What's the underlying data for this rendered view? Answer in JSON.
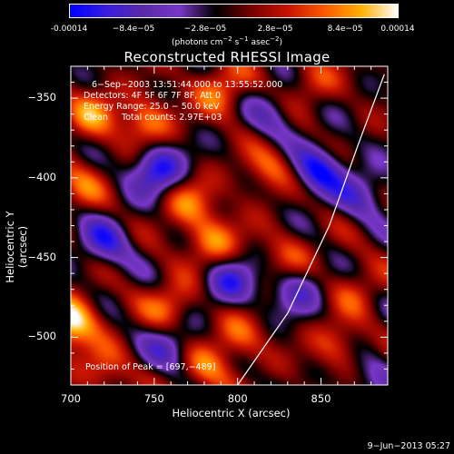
{
  "colorbar": {
    "ticks": [
      "-0.00014",
      "−8.4e−05",
      "−2.8e−05",
      "2.8e−05",
      "8.4e−05",
      "0.00014"
    ],
    "label_main": "(photons cm",
    "label_sup1": "−2",
    "label_mid": " s",
    "label_sup2": "−1",
    "label_end": " asec",
    "label_sup3": "−2",
    "label_close": ")"
  },
  "header": {
    "time_range": "6−Sep−2003 13:51:44.000 to 13:55:52.000",
    "detectors": "Detectors: 4F 5F 6F 7F 8F, Att 0",
    "energy": "Energy Range: 25.0 − 50.0 keV",
    "clean": "Clean     Total counts: 2.97E+03",
    "peak": "Position of Peak = [697,−489]"
  },
  "footer": {
    "date": "9−Jun−2013 05:27"
  },
  "chart_data": {
    "type": "heatmap",
    "title": "Reconstructed RHESSI Image",
    "xlabel": "Heliocentric X (arcsec)",
    "ylabel": "Heliocentric Y (arcsec)",
    "xlim": [
      700,
      890
    ],
    "ylim": [
      -530,
      -330
    ],
    "x_ticks": [
      "700",
      "750",
      "800",
      "850"
    ],
    "y_ticks": [
      "−350",
      "−400",
      "−450",
      "−500"
    ],
    "zlim": [
      -0.00014,
      0.00014
    ],
    "colormap": [
      "#0000ff",
      "#3b1de0",
      "#5a2aa8",
      "#7a37c8",
      "#000000",
      "#7a0000",
      "#c81400",
      "#ff5a00",
      "#ffb000",
      "#ffffff"
    ],
    "limb_line": [
      [
        800,
        -530
      ],
      [
        830,
        -485
      ],
      [
        855,
        -430
      ],
      [
        872,
        -380
      ],
      [
        888,
        -335
      ]
    ],
    "sources": [
      {
        "x": 700,
        "y": -490,
        "v": 0.00014
      },
      {
        "x": 712,
        "y": -360,
        "v": 8e-05
      },
      {
        "x": 745,
        "y": -365,
        "v": 9e-05
      },
      {
        "x": 790,
        "y": -345,
        "v": 8e-05
      },
      {
        "x": 705,
        "y": -405,
        "v": 6e-05
      },
      {
        "x": 770,
        "y": -415,
        "v": 8e-05
      },
      {
        "x": 785,
        "y": -440,
        "v": 9e-05
      },
      {
        "x": 818,
        "y": -395,
        "v": 7e-05
      },
      {
        "x": 830,
        "y": -450,
        "v": 6e-05
      },
      {
        "x": 760,
        "y": -480,
        "v": 8e-05
      },
      {
        "x": 800,
        "y": -500,
        "v": 7e-05
      },
      {
        "x": 720,
        "y": -520,
        "v": 6e-05
      },
      {
        "x": 780,
        "y": -520,
        "v": 7e-05
      },
      {
        "x": 870,
        "y": -470,
        "v": 5e-05
      },
      {
        "x": 860,
        "y": -505,
        "v": 6e-05
      },
      {
        "x": 845,
        "y": -340,
        "v": 5e-05
      },
      {
        "x": 752,
        "y": -395,
        "v": -0.00013
      },
      {
        "x": 848,
        "y": -395,
        "v": -0.00012
      },
      {
        "x": 720,
        "y": -440,
        "v": -9e-05
      },
      {
        "x": 795,
        "y": -465,
        "v": -0.0001
      },
      {
        "x": 835,
        "y": -470,
        "v": -8e-05
      },
      {
        "x": 760,
        "y": -505,
        "v": -8e-05
      },
      {
        "x": 875,
        "y": -410,
        "v": -7e-05
      },
      {
        "x": 820,
        "y": -360,
        "v": -6e-05
      },
      {
        "x": 880,
        "y": -525,
        "v": -5e-05
      }
    ]
  }
}
